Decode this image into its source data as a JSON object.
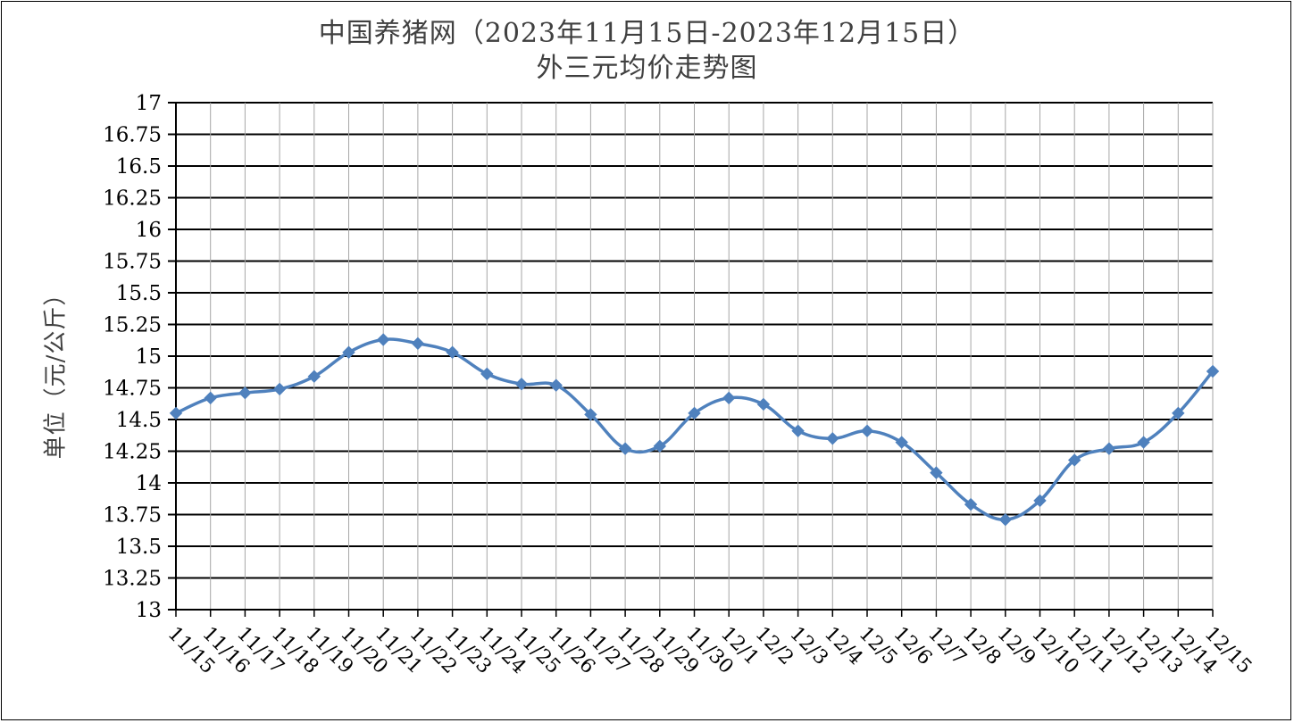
{
  "chart_data": {
    "type": "line",
    "title": "中国养猪网（2023年11月15日-2023年12月15日）",
    "subtitle": "外三元均价走势图",
    "xlabel": "",
    "ylabel": "单位（元/公斤）",
    "ylim": [
      13,
      17
    ],
    "ytick_step": 0.25,
    "ytick_labels": [
      "13",
      "13.25",
      "13.5",
      "13.75",
      "14",
      "14.25",
      "14.5",
      "14.75",
      "15",
      "15.25",
      "15.5",
      "15.75",
      "16",
      "16.25",
      "16.5",
      "16.75",
      "17"
    ],
    "grid": true,
    "legend": "none",
    "categories": [
      "11/15",
      "11/16",
      "11/17",
      "11/18",
      "11/19",
      "11/20",
      "11/21",
      "11/22",
      "11/23",
      "11/24",
      "11/25",
      "11/26",
      "11/27",
      "11/28",
      "11/29",
      "11/30",
      "12/1",
      "12/2",
      "12/3",
      "12/4",
      "12/5",
      "12/6",
      "12/7",
      "12/8",
      "12/9",
      "12/10",
      "12/11",
      "12/12",
      "12/13",
      "12/14",
      "12/15"
    ],
    "series": [
      {
        "color": "#4f81bd",
        "values": [
          14.55,
          14.67,
          14.71,
          14.74,
          14.84,
          15.03,
          15.13,
          15.1,
          15.03,
          14.86,
          14.78,
          14.77,
          14.54,
          14.27,
          14.29,
          14.55,
          14.67,
          14.62,
          14.41,
          14.35,
          14.41,
          14.32,
          14.08,
          13.83,
          13.71,
          13.86,
          14.18,
          14.27,
          14.32,
          14.55,
          14.88
        ]
      }
    ]
  }
}
